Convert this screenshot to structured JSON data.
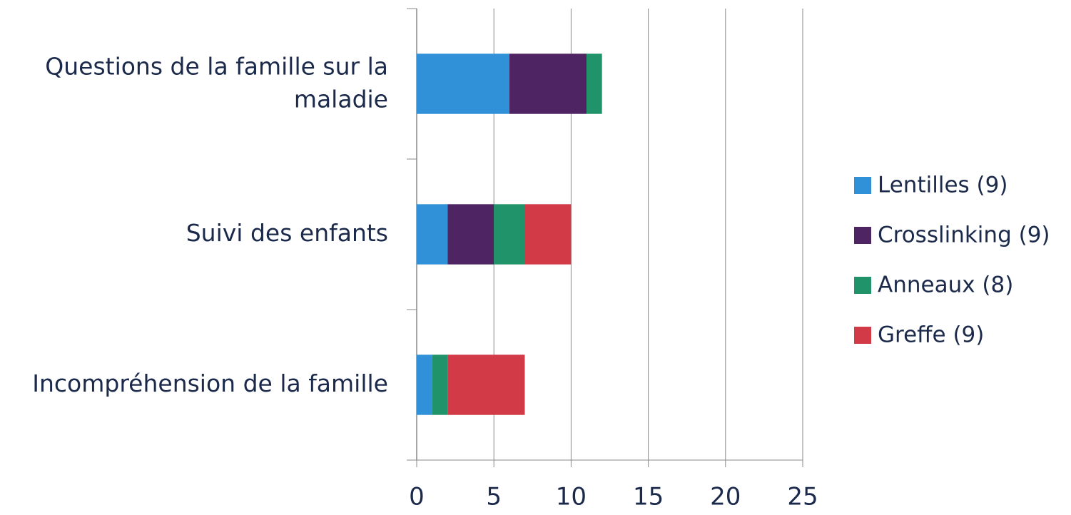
{
  "chart_data": {
    "type": "stacked_bar_horizontal",
    "categories": [
      "Questions de la famille sur la maladie",
      "Suivi des enfants",
      "Incompréhension de la famille"
    ],
    "series": [
      {
        "name": "Lentilles (9)",
        "color": "#3091d9",
        "values": [
          6,
          2,
          1
        ]
      },
      {
        "name": "Crosslinking (9)",
        "color": "#4e2562",
        "values": [
          5,
          3,
          0
        ]
      },
      {
        "name": "Anneaux (8)",
        "color": "#21936a",
        "values": [
          1,
          2,
          1
        ]
      },
      {
        "name": "Greffe (9)",
        "color": "#d23a47",
        "values": [
          0,
          3,
          5
        ]
      }
    ],
    "xlim": [
      0,
      25
    ],
    "xticks": [
      0,
      5,
      10,
      15,
      20,
      25
    ],
    "grid": true,
    "legend": "right"
  }
}
